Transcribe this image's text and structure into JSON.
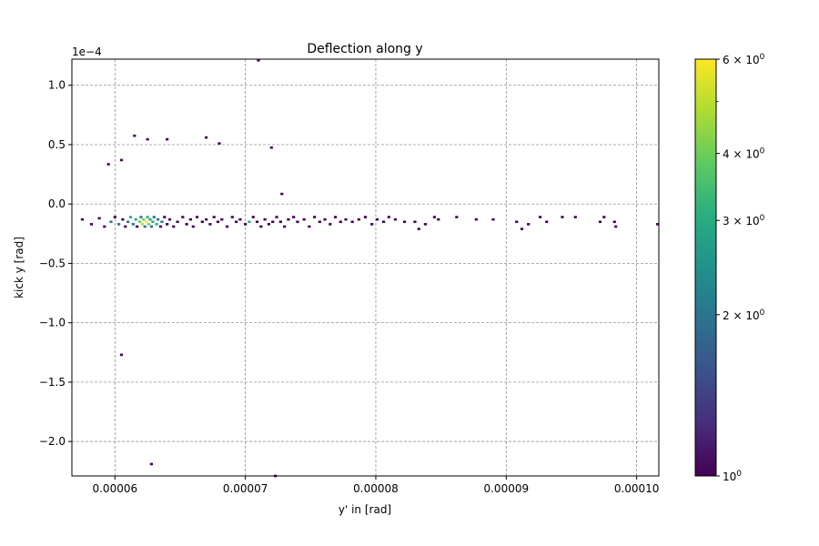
{
  "chart_data": {
    "type": "heatmap",
    "title": "Deflection along y",
    "xlabel": "y' in [rad]",
    "ylabel": "kick y [rad]",
    "y_offset_label": "1e−4",
    "xlim": [
      5.67e-05,
      0.0001017
    ],
    "ylim": [
      -0.000229,
      0.000122
    ],
    "x_ticks": [
      {
        "value": 6e-05,
        "label": "0.00006"
      },
      {
        "value": 7e-05,
        "label": "0.00007"
      },
      {
        "value": 8e-05,
        "label": "0.00008"
      },
      {
        "value": 9e-05,
        "label": "0.00009"
      },
      {
        "value": 0.0001,
        "label": "0.00010"
      }
    ],
    "y_ticks": [
      {
        "value": 0.0001,
        "label": "1.0"
      },
      {
        "value": 5e-05,
        "label": "0.5"
      },
      {
        "value": 0.0,
        "label": "0.0"
      },
      {
        "value": -5e-05,
        "label": "−0.5"
      },
      {
        "value": -0.0001,
        "label": "−1.0"
      },
      {
        "value": -0.00015,
        "label": "−1.5"
      },
      {
        "value": -0.0002,
        "label": "−2.0"
      }
    ],
    "grid": true,
    "colormap": "viridis",
    "color_scale": "log",
    "colorbar": {
      "range": [
        1,
        6
      ],
      "ticks": [
        {
          "value": 1,
          "base": "10",
          "exp": "0",
          "mult": ""
        },
        {
          "value": 2,
          "base": "10",
          "exp": "0",
          "mult": "2 × "
        },
        {
          "value": 3,
          "base": "10",
          "exp": "0",
          "mult": "3 × "
        },
        {
          "value": 4,
          "base": "10",
          "exp": "0",
          "mult": "4 × "
        },
        {
          "value": 6,
          "base": "10",
          "exp": "0",
          "mult": "6 × "
        }
      ],
      "minor_ticks": [
        5
      ]
    },
    "points": [
      [
        6.15e-05,
        5.75e-05,
        1
      ],
      [
        6.25e-05,
        5.45e-05,
        1
      ],
      [
        6.4e-05,
        5.45e-05,
        1
      ],
      [
        6.7e-05,
        5.6e-05,
        1
      ],
      [
        6.8e-05,
        5.1e-05,
        1
      ],
      [
        7.2e-05,
        4.75e-05,
        1
      ],
      [
        5.95e-05,
        3.35e-05,
        1
      ],
      [
        6.05e-05,
        3.7e-05,
        1
      ],
      [
        7.1e-05,
        0.000121,
        1
      ],
      [
        7.28e-05,
        8.5e-06,
        1
      ],
      [
        6.05e-05,
        -0.000127,
        1
      ],
      [
        6.28e-05,
        -0.000219,
        1
      ],
      [
        7.23e-05,
        -0.000229,
        1
      ],
      [
        5.75e-05,
        -1.3e-05,
        1
      ],
      [
        5.82e-05,
        -1.7e-05,
        1
      ],
      [
        5.88e-05,
        -1.2e-05,
        1
      ],
      [
        5.92e-05,
        -1.9e-05,
        1
      ],
      [
        5.97e-05,
        -1.5e-05,
        2
      ],
      [
        6e-05,
        -1.1e-05,
        1
      ],
      [
        6.03e-05,
        -1.7e-05,
        2
      ],
      [
        6.06e-05,
        -1.3e-05,
        1
      ],
      [
        6.08e-05,
        -1.9e-05,
        1
      ],
      [
        6.1e-05,
        -1.5e-05,
        2
      ],
      [
        6.12e-05,
        -1.1e-05,
        3
      ],
      [
        6.14e-05,
        -1.7e-05,
        2
      ],
      [
        6.16e-05,
        -1.3e-05,
        3
      ],
      [
        6.17e-05,
        -1.9e-05,
        1
      ],
      [
        6.19e-05,
        -1.5e-05,
        4
      ],
      [
        6.2e-05,
        -1.1e-05,
        2
      ],
      [
        6.21e-05,
        -1.7e-05,
        5
      ],
      [
        6.22e-05,
        -1.3e-05,
        4
      ],
      [
        6.23e-05,
        -1.9e-05,
        2
      ],
      [
        6.24e-05,
        -1.5e-05,
        6
      ],
      [
        6.25e-05,
        -1.1e-05,
        3
      ],
      [
        6.26e-05,
        -1.7e-05,
        4
      ],
      [
        6.27e-05,
        -1.3e-05,
        3
      ],
      [
        6.28e-05,
        -1.9e-05,
        2
      ],
      [
        6.29e-05,
        -1.5e-05,
        3
      ],
      [
        6.3e-05,
        -1.1e-05,
        2
      ],
      [
        6.32e-05,
        -1.7e-05,
        3
      ],
      [
        6.33e-05,
        -1.3e-05,
        2
      ],
      [
        6.35e-05,
        -1.9e-05,
        1
      ],
      [
        6.36e-05,
        -1.5e-05,
        2
      ],
      [
        6.38e-05,
        -1.1e-05,
        1
      ],
      [
        6.4e-05,
        -1.7e-05,
        1
      ],
      [
        6.42e-05,
        -1.3e-05,
        1
      ],
      [
        6.45e-05,
        -1.9e-05,
        1
      ],
      [
        6.48e-05,
        -1.5e-05,
        1
      ],
      [
        6.52e-05,
        -1.1e-05,
        1
      ],
      [
        6.55e-05,
        -1.7e-05,
        1
      ],
      [
        6.58e-05,
        -1.3e-05,
        1
      ],
      [
        6.6e-05,
        -1.9e-05,
        1
      ],
      [
        6.63e-05,
        -1.1e-05,
        1
      ],
      [
        6.67e-05,
        -1.5e-05,
        1
      ],
      [
        6.7e-05,
        -1.3e-05,
        1
      ],
      [
        6.73e-05,
        -1.7e-05,
        1
      ],
      [
        6.76e-05,
        -1.1e-05,
        1
      ],
      [
        6.79e-05,
        -1.5e-05,
        1
      ],
      [
        6.82e-05,
        -1.3e-05,
        1
      ],
      [
        6.86e-05,
        -1.9e-05,
        1
      ],
      [
        6.9e-05,
        -1.1e-05,
        1
      ],
      [
        6.93e-05,
        -1.5e-05,
        1
      ],
      [
        6.96e-05,
        -1.3e-05,
        1
      ],
      [
        7e-05,
        -1.7e-05,
        1
      ],
      [
        7.03e-05,
        -1.5e-05,
        3
      ],
      [
        7.06e-05,
        -1.1e-05,
        1
      ],
      [
        7.09e-05,
        -1.5e-05,
        1
      ],
      [
        7.12e-05,
        -1.9e-05,
        1
      ],
      [
        7.15e-05,
        -1.3e-05,
        1
      ],
      [
        7.18e-05,
        -1.7e-05,
        1
      ],
      [
        7.21e-05,
        -1.5e-05,
        1
      ],
      [
        7.24e-05,
        -1.1e-05,
        1
      ],
      [
        7.27e-05,
        -1.5e-05,
        1
      ],
      [
        7.3e-05,
        -1.9e-05,
        1
      ],
      [
        7.33e-05,
        -1.3e-05,
        1
      ],
      [
        7.37e-05,
        -1.1e-05,
        1
      ],
      [
        7.4e-05,
        -1.5e-05,
        1
      ],
      [
        7.45e-05,
        -1.3e-05,
        1
      ],
      [
        7.49e-05,
        -1.9e-05,
        1
      ],
      [
        7.53e-05,
        -1.1e-05,
        1
      ],
      [
        7.57e-05,
        -1.5e-05,
        1
      ],
      [
        7.61e-05,
        -1.3e-05,
        1
      ],
      [
        7.65e-05,
        -1.7e-05,
        1
      ],
      [
        7.69e-05,
        -1.1e-05,
        1
      ],
      [
        7.73e-05,
        -1.5e-05,
        1
      ],
      [
        7.77e-05,
        -1.3e-05,
        1
      ],
      [
        7.82e-05,
        -1.5e-05,
        1
      ],
      [
        7.87e-05,
        -1.3e-05,
        1
      ],
      [
        7.92e-05,
        -1.1e-05,
        1
      ],
      [
        7.97e-05,
        -1.7e-05,
        1
      ],
      [
        8.01e-05,
        -1.3e-05,
        1
      ],
      [
        8.06e-05,
        -1.5e-05,
        1
      ],
      [
        8.1e-05,
        -1.1e-05,
        1
      ],
      [
        8.15e-05,
        -1.3e-05,
        1
      ],
      [
        8.22e-05,
        -1.5e-05,
        1
      ],
      [
        8.3e-05,
        -1.5e-05,
        1
      ],
      [
        8.33e-05,
        -2.1e-05,
        1
      ],
      [
        8.38e-05,
        -1.7e-05,
        1
      ],
      [
        8.45e-05,
        -1.1e-05,
        1
      ],
      [
        8.48e-05,
        -1.3e-05,
        1
      ],
      [
        8.62e-05,
        -1.1e-05,
        1
      ],
      [
        8.77e-05,
        -1.3e-05,
        1
      ],
      [
        8.9e-05,
        -1.3e-05,
        1
      ],
      [
        9.08e-05,
        -1.5e-05,
        1
      ],
      [
        9.12e-05,
        -2.1e-05,
        1
      ],
      [
        9.17e-05,
        -1.7e-05,
        1
      ],
      [
        9.26e-05,
        -1.1e-05,
        1
      ],
      [
        9.31e-05,
        -1.5e-05,
        1
      ],
      [
        9.43e-05,
        -1.1e-05,
        1
      ],
      [
        9.53e-05,
        -1.1e-05,
        1
      ],
      [
        9.72e-05,
        -1.5e-05,
        1
      ],
      [
        9.75e-05,
        -1.1e-05,
        1
      ],
      [
        9.83e-05,
        -1.5e-05,
        1
      ],
      [
        9.84e-05,
        -1.9e-05,
        1
      ],
      [
        0.0001016,
        -1.7e-05,
        1
      ]
    ]
  }
}
